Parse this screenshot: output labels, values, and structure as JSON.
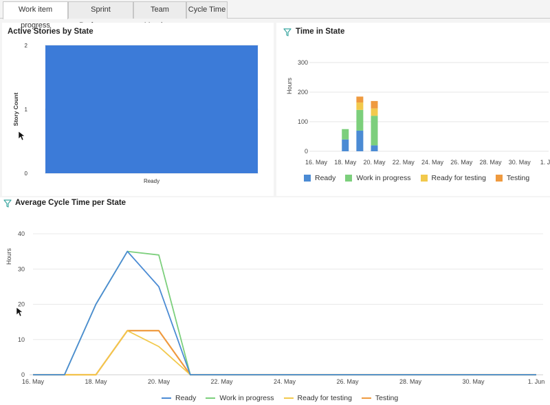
{
  "tabs": [
    {
      "label": "Work item progress",
      "active": true
    },
    {
      "label": "Sprint Performance",
      "active": false
    },
    {
      "label": "Team Members",
      "active": false
    },
    {
      "label": "Cycle Time",
      "active": false
    }
  ],
  "colors": {
    "ready": "#4b8bd4",
    "work_in_progress": "#7ccf7c",
    "ready_for_testing": "#f2c94c",
    "testing": "#ef9a3f",
    "bar_blue": "#3c7bd8"
  },
  "panels": {
    "active_stories": {
      "title": "Active Stories by State"
    },
    "time_in_state": {
      "title": "Time in State",
      "icon": "filter-icon"
    },
    "avg_cycle": {
      "title": "Average Cycle Time per State",
      "icon": "filter-icon"
    }
  },
  "chart_data": [
    {
      "type": "bar",
      "title": "Active Stories by State",
      "categories": [
        "Ready"
      ],
      "values": [
        2
      ],
      "xlabel": "",
      "ylabel": "Story Count",
      "ylim": [
        0,
        2
      ],
      "yticks": [
        0,
        1,
        2
      ],
      "grid": true
    },
    {
      "type": "bar",
      "stacked": true,
      "title": "Time in State",
      "ylabel": "Hours",
      "ylim": [
        0,
        300
      ],
      "yticks": [
        0,
        100,
        200,
        300
      ],
      "x_tick_labels": [
        "16. May",
        "18. May",
        "20. May",
        "22. May",
        "24. May",
        "26. May",
        "28. May",
        "30. May",
        "1. Jun"
      ],
      "x": [
        "18. May",
        "19. May",
        "20. May"
      ],
      "series": [
        {
          "name": "Ready",
          "values": [
            40,
            70,
            20
          ]
        },
        {
          "name": "Work in progress",
          "values": [
            35,
            70,
            100
          ]
        },
        {
          "name": "Ready for testing",
          "values": [
            0,
            25,
            25
          ]
        },
        {
          "name": "Testing",
          "values": [
            0,
            20,
            25
          ]
        }
      ],
      "legend": "bottom",
      "grid": true
    },
    {
      "type": "line",
      "title": "Average Cycle Time per State",
      "ylabel": "Hours",
      "ylim": [
        0,
        40
      ],
      "yticks": [
        0,
        10,
        20,
        30,
        40
      ],
      "x_tick_labels": [
        "16. May",
        "18. May",
        "20. May",
        "22. May",
        "24. May",
        "26. May",
        "28. May",
        "30. May",
        "1. Jun"
      ],
      "x_range": [
        16,
        32
      ],
      "x": [
        16,
        17,
        18,
        19,
        20,
        21,
        32
      ],
      "series": [
        {
          "name": "Ready",
          "values": [
            0,
            0,
            20,
            35,
            25,
            0,
            0
          ]
        },
        {
          "name": "Work in progress",
          "values": [
            0,
            0,
            20,
            35,
            34,
            0,
            0
          ]
        },
        {
          "name": "Ready for testing",
          "values": [
            0,
            0,
            0,
            12.5,
            8,
            0,
            0
          ]
        },
        {
          "name": "Testing",
          "values": [
            0,
            0,
            0,
            12.5,
            12.5,
            0,
            0
          ]
        }
      ],
      "legend": "bottom",
      "grid": true
    }
  ]
}
